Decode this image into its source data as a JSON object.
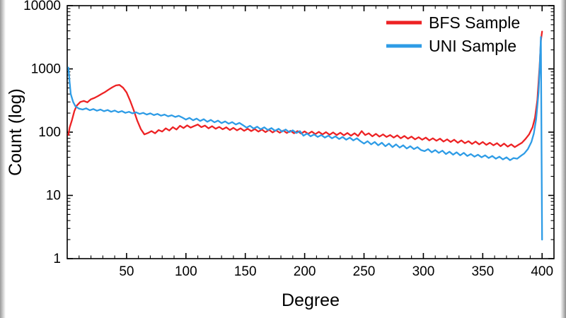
{
  "figure": {
    "background": "#ffffff",
    "frame_color": "#000000",
    "text_color": "#000000"
  },
  "chart_data": {
    "type": "line",
    "title": "",
    "xlabel": "Degree",
    "ylabel": "Count (log)",
    "grid": false,
    "yscale": "log",
    "xlim": [
      0,
      410
    ],
    "ylim": [
      1,
      10000
    ],
    "x_major_ticks": [
      50,
      100,
      150,
      200,
      250,
      300,
      350,
      400
    ],
    "x_tick_labels": [
      "50",
      "100",
      "150",
      "200",
      "250",
      "300",
      "350",
      "400"
    ],
    "x_minor_step": 10,
    "y_major_ticks": [
      1,
      10,
      100,
      1000,
      10000
    ],
    "y_tick_labels": [
      "1",
      "10",
      "100",
      "1000",
      "10000"
    ],
    "legend": {
      "position": "top-right",
      "labels": [
        "BFS Sample",
        "UNI Sample"
      ]
    },
    "series": [
      {
        "name": "BFS Sample",
        "color": "#ed2224",
        "points": [
          [
            1,
            90
          ],
          [
            2,
            118
          ],
          [
            4,
            155
          ],
          [
            6,
            215
          ],
          [
            8,
            262
          ],
          [
            11,
            300
          ],
          [
            14,
            312
          ],
          [
            17,
            296
          ],
          [
            20,
            332
          ],
          [
            23,
            348
          ],
          [
            26,
            372
          ],
          [
            29,
            402
          ],
          [
            32,
            432
          ],
          [
            35,
            472
          ],
          [
            38,
            512
          ],
          [
            41,
            548
          ],
          [
            44,
            558
          ],
          [
            47,
            505
          ],
          [
            50,
            425
          ],
          [
            53,
            315
          ],
          [
            56,
            222
          ],
          [
            59,
            152
          ],
          [
            62,
            112
          ],
          [
            65,
            92
          ],
          [
            68,
            97
          ],
          [
            71,
            104
          ],
          [
            74,
            96
          ],
          [
            77,
            108
          ],
          [
            80,
            102
          ],
          [
            83,
            115
          ],
          [
            86,
            106
          ],
          [
            89,
            120
          ],
          [
            92,
            110
          ],
          [
            95,
            126
          ],
          [
            98,
            116
          ],
          [
            101,
            128
          ],
          [
            104,
            118
          ],
          [
            107,
            125
          ],
          [
            110,
            132
          ],
          [
            113,
            120
          ],
          [
            116,
            127
          ],
          [
            119,
            115
          ],
          [
            122,
            124
          ],
          [
            125,
            113
          ],
          [
            128,
            121
          ],
          [
            131,
            111
          ],
          [
            134,
            119
          ],
          [
            137,
            108
          ],
          [
            140,
            117
          ],
          [
            143,
            107
          ],
          [
            146,
            115
          ],
          [
            149,
            105
          ],
          [
            152,
            113
          ],
          [
            155,
            104
          ],
          [
            158,
            112
          ],
          [
            161,
            102
          ],
          [
            164,
            110
          ],
          [
            167,
            100
          ],
          [
            170,
            109
          ],
          [
            173,
            99
          ],
          [
            176,
            107
          ],
          [
            179,
            98
          ],
          [
            182,
            106
          ],
          [
            185,
            97
          ],
          [
            188,
            105
          ],
          [
            191,
            96
          ],
          [
            194,
            104
          ],
          [
            197,
            95
          ],
          [
            200,
            103
          ],
          [
            203,
            94
          ],
          [
            206,
            102
          ],
          [
            209,
            93
          ],
          [
            212,
            101
          ],
          [
            215,
            92
          ],
          [
            218,
            100
          ],
          [
            221,
            91
          ],
          [
            224,
            99
          ],
          [
            227,
            90
          ],
          [
            230,
            98
          ],
          [
            233,
            89
          ],
          [
            236,
            97
          ],
          [
            239,
            88
          ],
          [
            242,
            96
          ],
          [
            245,
            87
          ],
          [
            248,
            104
          ],
          [
            251,
            90
          ],
          [
            254,
            96
          ],
          [
            257,
            86
          ],
          [
            260,
            94
          ],
          [
            263,
            85
          ],
          [
            266,
            92
          ],
          [
            269,
            84
          ],
          [
            272,
            90
          ],
          [
            275,
            82
          ],
          [
            278,
            89
          ],
          [
            281,
            80
          ],
          [
            284,
            87
          ],
          [
            287,
            79
          ],
          [
            290,
            85
          ],
          [
            293,
            77
          ],
          [
            296,
            83
          ],
          [
            299,
            76
          ],
          [
            302,
            82
          ],
          [
            305,
            74
          ],
          [
            308,
            80
          ],
          [
            311,
            73
          ],
          [
            314,
            79
          ],
          [
            317,
            71
          ],
          [
            320,
            77
          ],
          [
            323,
            70
          ],
          [
            326,
            76
          ],
          [
            329,
            68
          ],
          [
            332,
            74
          ],
          [
            335,
            67
          ],
          [
            338,
            72
          ],
          [
            341,
            65
          ],
          [
            344,
            71
          ],
          [
            347,
            64
          ],
          [
            350,
            70
          ],
          [
            353,
            63
          ],
          [
            356,
            68
          ],
          [
            359,
            62
          ],
          [
            362,
            67
          ],
          [
            365,
            60
          ],
          [
            368,
            66
          ],
          [
            371,
            59
          ],
          [
            374,
            64
          ],
          [
            377,
            58
          ],
          [
            380,
            63
          ],
          [
            383,
            68
          ],
          [
            386,
            78
          ],
          [
            389,
            92
          ],
          [
            392,
            120
          ],
          [
            394,
            170
          ],
          [
            396,
            320
          ],
          [
            398,
            1200
          ],
          [
            399,
            2800
          ],
          [
            400,
            3900
          ]
        ]
      },
      {
        "name": "UNI Sample",
        "color": "#2e9ce6",
        "points": [
          [
            1,
            1050
          ],
          [
            2,
            620
          ],
          [
            3,
            400
          ],
          [
            5,
            300
          ],
          [
            7,
            255
          ],
          [
            10,
            235
          ],
          [
            13,
            228
          ],
          [
            16,
            238
          ],
          [
            19,
            222
          ],
          [
            22,
            232
          ],
          [
            25,
            218
          ],
          [
            28,
            228
          ],
          [
            31,
            214
          ],
          [
            34,
            224
          ],
          [
            37,
            210
          ],
          [
            40,
            220
          ],
          [
            43,
            206
          ],
          [
            46,
            215
          ],
          [
            49,
            202
          ],
          [
            52,
            210
          ],
          [
            55,
            198
          ],
          [
            58,
            206
          ],
          [
            61,
            194
          ],
          [
            64,
            202
          ],
          [
            67,
            190
          ],
          [
            70,
            198
          ],
          [
            73,
            186
          ],
          [
            76,
            194
          ],
          [
            79,
            182
          ],
          [
            82,
            190
          ],
          [
            85,
            178
          ],
          [
            88,
            185
          ],
          [
            91,
            174
          ],
          [
            94,
            181
          ],
          [
            97,
            170
          ],
          [
            100,
            158
          ],
          [
            103,
            168
          ],
          [
            106,
            154
          ],
          [
            109,
            164
          ],
          [
            112,
            150
          ],
          [
            115,
            160
          ],
          [
            118,
            146
          ],
          [
            121,
            156
          ],
          [
            124,
            143
          ],
          [
            127,
            152
          ],
          [
            130,
            139
          ],
          [
            133,
            148
          ],
          [
            136,
            136
          ],
          [
            139,
            144
          ],
          [
            142,
            132
          ],
          [
            145,
            140
          ],
          [
            148,
            129
          ],
          [
            151,
            118
          ],
          [
            154,
            126
          ],
          [
            157,
            114
          ],
          [
            160,
            122
          ],
          [
            163,
            111
          ],
          [
            166,
            119
          ],
          [
            169,
            108
          ],
          [
            172,
            116
          ],
          [
            175,
            105
          ],
          [
            178,
            113
          ],
          [
            181,
            102
          ],
          [
            184,
            110
          ],
          [
            187,
            100
          ],
          [
            190,
            107
          ],
          [
            193,
            97
          ],
          [
            196,
            104
          ],
          [
            199,
            88
          ],
          [
            202,
            95
          ],
          [
            205,
            86
          ],
          [
            208,
            92
          ],
          [
            211,
            84
          ],
          [
            214,
            90
          ],
          [
            217,
            82
          ],
          [
            220,
            88
          ],
          [
            223,
            80
          ],
          [
            226,
            86
          ],
          [
            229,
            78
          ],
          [
            232,
            84
          ],
          [
            235,
            76
          ],
          [
            238,
            82
          ],
          [
            241,
            74
          ],
          [
            244,
            80
          ],
          [
            247,
            72
          ],
          [
            250,
            66
          ],
          [
            253,
            72
          ],
          [
            256,
            64
          ],
          [
            259,
            70
          ],
          [
            262,
            62
          ],
          [
            265,
            68
          ],
          [
            268,
            60
          ],
          [
            271,
            66
          ],
          [
            274,
            58
          ],
          [
            277,
            64
          ],
          [
            280,
            57
          ],
          [
            283,
            62
          ],
          [
            286,
            55
          ],
          [
            289,
            60
          ],
          [
            292,
            54
          ],
          [
            295,
            58
          ],
          [
            298,
            52
          ],
          [
            301,
            50
          ],
          [
            304,
            54
          ],
          [
            307,
            48
          ],
          [
            310,
            52
          ],
          [
            313,
            47
          ],
          [
            316,
            51
          ],
          [
            319,
            45
          ],
          [
            322,
            49
          ],
          [
            325,
            44
          ],
          [
            328,
            48
          ],
          [
            331,
            43
          ],
          [
            334,
            47
          ],
          [
            337,
            42
          ],
          [
            340,
            45
          ],
          [
            343,
            41
          ],
          [
            346,
            44
          ],
          [
            349,
            40
          ],
          [
            352,
            43
          ],
          [
            355,
            39
          ],
          [
            358,
            42
          ],
          [
            361,
            38
          ],
          [
            364,
            41
          ],
          [
            367,
            37
          ],
          [
            370,
            40
          ],
          [
            373,
            36
          ],
          [
            376,
            39
          ],
          [
            379,
            38
          ],
          [
            382,
            42
          ],
          [
            385,
            46
          ],
          [
            388,
            54
          ],
          [
            391,
            70
          ],
          [
            393,
            95
          ],
          [
            395,
            160
          ],
          [
            397,
            420
          ],
          [
            398,
            1100
          ],
          [
            399,
            3200
          ],
          [
            400,
            2
          ]
        ]
      }
    ]
  }
}
